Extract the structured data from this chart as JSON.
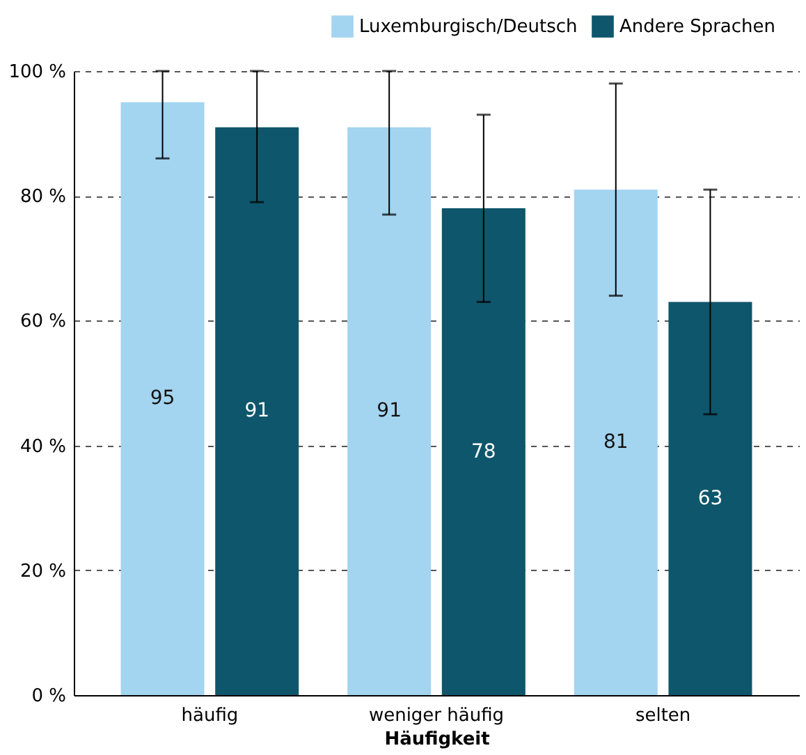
{
  "chart_data": {
    "type": "bar",
    "xlabel": "Häufigkeit",
    "categories": [
      "häufig",
      "weniger häufig",
      "selten"
    ],
    "series": [
      {
        "name": "Luxemburgisch/Deutsch",
        "color": "#a3d4f0",
        "values": [
          95,
          91,
          81
        ],
        "errors": [
          [
            86,
            100
          ],
          [
            77,
            100
          ],
          [
            64,
            98
          ]
        ]
      },
      {
        "name": "Andere Sprachen",
        "color": "#0e566b",
        "values": [
          91,
          78,
          63
        ],
        "errors": [
          [
            79,
            100
          ],
          [
            63,
            93
          ],
          [
            45,
            81
          ]
        ]
      }
    ],
    "ylim": [
      0,
      100
    ],
    "yticks": [
      {
        "value": 0,
        "label": "0 %"
      },
      {
        "value": 20,
        "label": "20 %"
      },
      {
        "value": 40,
        "label": "40 %"
      },
      {
        "value": 60,
        "label": "60 %"
      },
      {
        "value": 80,
        "label": "80 %"
      },
      {
        "value": 100,
        "label": "100 %"
      }
    ],
    "grid": "y",
    "legend": "top right",
    "data_labels": true
  }
}
